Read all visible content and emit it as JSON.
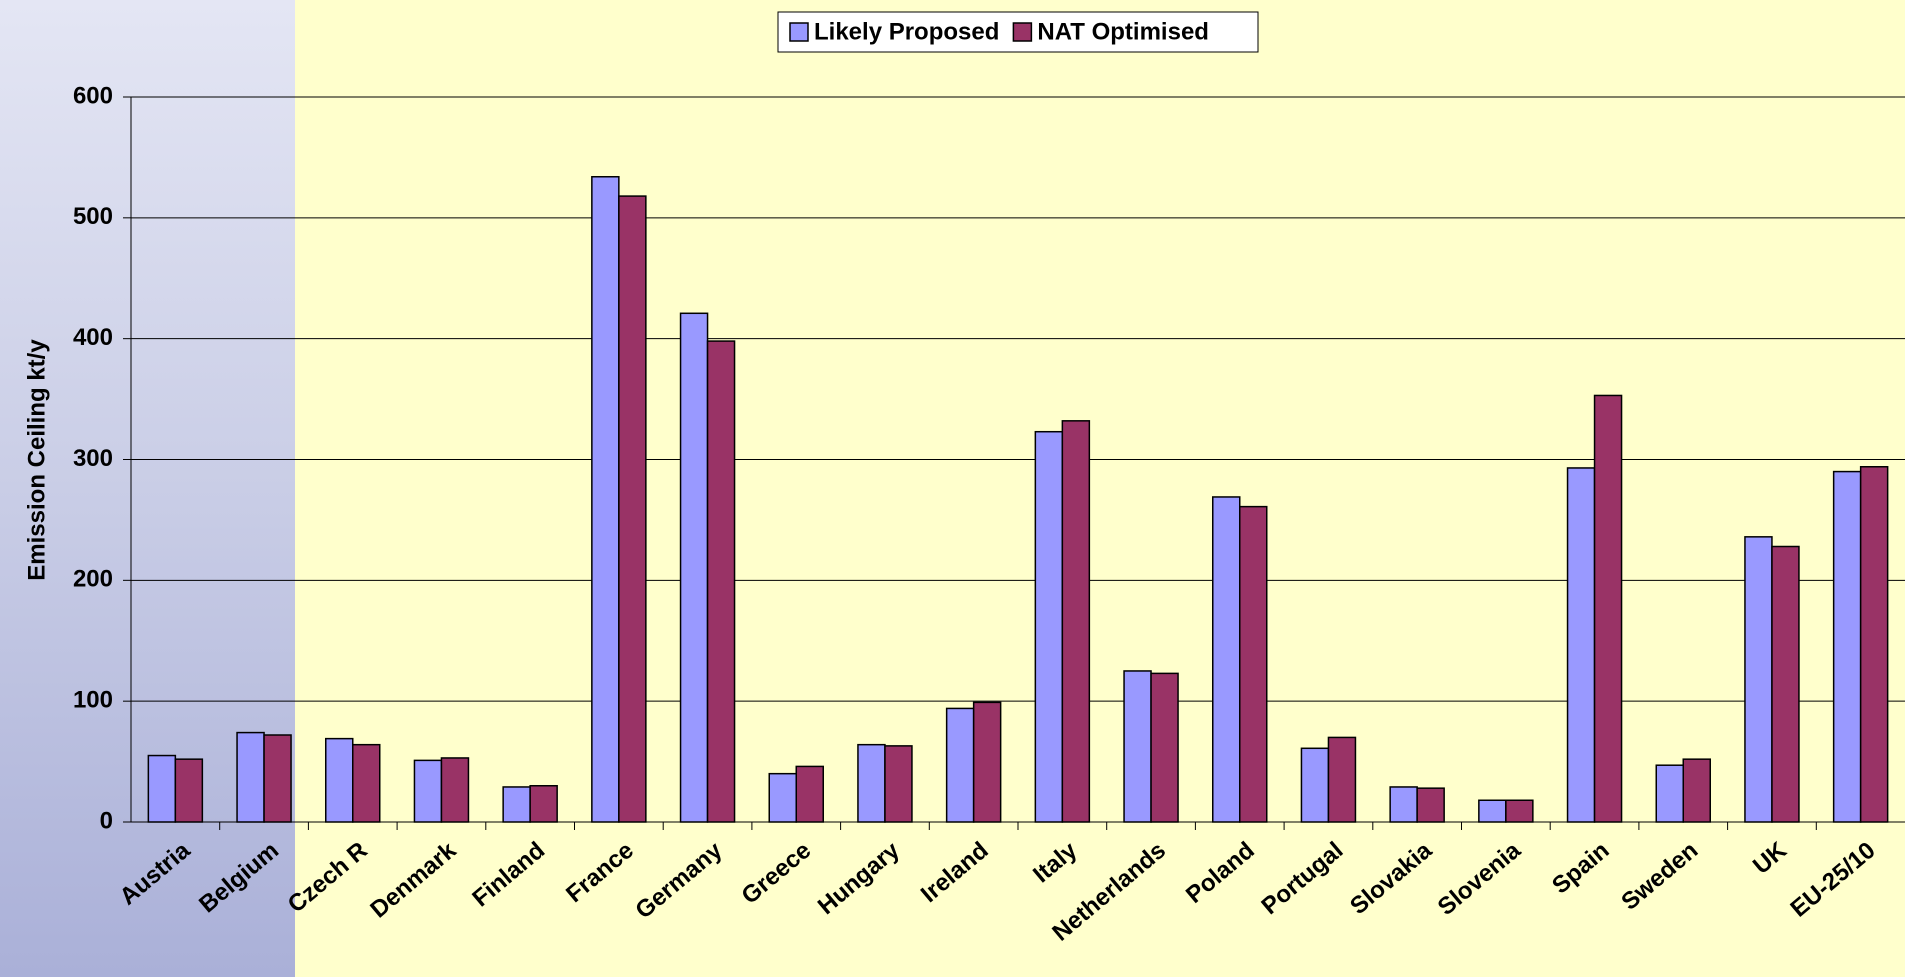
{
  "chart_data": {
    "type": "bar",
    "y_label": "Emission Ceiling kt/y",
    "categories": [
      "Austria",
      "Belgium",
      "Czech R",
      "Denmark",
      "Finland",
      "France",
      "Germany",
      "Greece",
      "Hungary",
      "Ireland",
      "Italy",
      "Netherlands",
      "Poland",
      "Portugal",
      "Slovakia",
      "Slovenia",
      "Spain",
      "Sweden",
      "UK",
      "EU-25/10"
    ],
    "series": [
      {
        "name": "Likely Proposed",
        "color": "#9999ff",
        "values": [
          55,
          74,
          69,
          51,
          29,
          534,
          421,
          40,
          64,
          94,
          323,
          125,
          269,
          61,
          29,
          18,
          293,
          47,
          236,
          290
        ]
      },
      {
        "name": "NAT Optimised",
        "color": "#993366",
        "values": [
          52,
          72,
          64,
          53,
          30,
          518,
          398,
          46,
          63,
          99,
          332,
          123,
          261,
          70,
          28,
          18,
          353,
          52,
          228,
          294
        ]
      }
    ],
    "ylim": [
      0,
      600
    ],
    "yticks": [
      0,
      100,
      200,
      300,
      400,
      500,
      600
    ],
    "grid": true,
    "legend": "top"
  }
}
